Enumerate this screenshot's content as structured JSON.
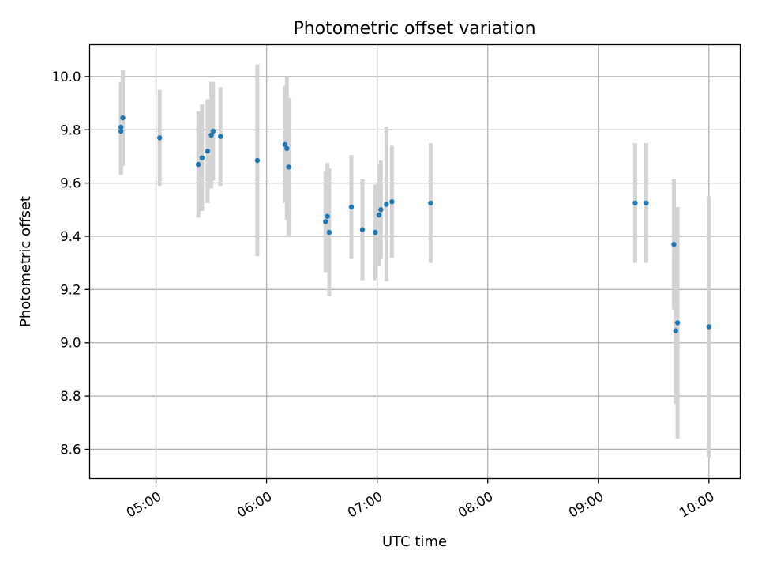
{
  "chart_data": {
    "type": "scatter",
    "title": "Photometric offset variation",
    "xlabel": "UTC time",
    "ylabel": "Photometric offset",
    "xlim": [
      "04:24",
      "10:17"
    ],
    "ylim": [
      8.49,
      10.12
    ],
    "grid": true,
    "x_ticks": [
      "05:00",
      "06:00",
      "07:00",
      "08:00",
      "09:00",
      "10:00"
    ],
    "y_ticks": [
      "8.6",
      "8.8",
      "9.0",
      "9.2",
      "9.4",
      "9.6",
      "9.8",
      "10.0"
    ],
    "point_color": "#1f77b4",
    "errorbar_color": "#d3d3d3",
    "points": [
      {
        "t": "04:41",
        "y": 9.81,
        "err": 0.17
      },
      {
        "t": "04:41",
        "y": 9.795,
        "err": 0.165
      },
      {
        "t": "04:42",
        "y": 9.845,
        "err": 0.18
      },
      {
        "t": "05:02",
        "y": 9.77,
        "err": 0.18
      },
      {
        "t": "05:23",
        "y": 9.67,
        "err": 0.2
      },
      {
        "t": "05:25",
        "y": 9.695,
        "err": 0.2
      },
      {
        "t": "05:28",
        "y": 9.72,
        "err": 0.195
      },
      {
        "t": "05:30",
        "y": 9.78,
        "err": 0.2
      },
      {
        "t": "05:31",
        "y": 9.795,
        "err": 0.185
      },
      {
        "t": "05:35",
        "y": 9.775,
        "err": 0.185
      },
      {
        "t": "05:55",
        "y": 9.685,
        "err": 0.36
      },
      {
        "t": "06:10",
        "y": 9.745,
        "err": 0.22
      },
      {
        "t": "06:11",
        "y": 9.73,
        "err": 0.27
      },
      {
        "t": "06:12",
        "y": 9.66,
        "err": 0.26
      },
      {
        "t": "06:32",
        "y": 9.455,
        "err": 0.19
      },
      {
        "t": "06:33",
        "y": 9.475,
        "err": 0.2
      },
      {
        "t": "06:34",
        "y": 9.415,
        "err": 0.24
      },
      {
        "t": "06:46",
        "y": 9.51,
        "err": 0.195
      },
      {
        "t": "06:52",
        "y": 9.425,
        "err": 0.19
      },
      {
        "t": "06:59",
        "y": 9.415,
        "err": 0.18
      },
      {
        "t": "07:01",
        "y": 9.48,
        "err": 0.19
      },
      {
        "t": "07:02",
        "y": 9.5,
        "err": 0.185
      },
      {
        "t": "07:05",
        "y": 9.52,
        "err": 0.29
      },
      {
        "t": "07:08",
        "y": 9.53,
        "err": 0.21
      },
      {
        "t": "07:29",
        "y": 9.525,
        "err": 0.225
      },
      {
        "t": "09:20",
        "y": 9.525,
        "err": 0.225
      },
      {
        "t": "09:26",
        "y": 9.525,
        "err": 0.225
      },
      {
        "t": "09:41",
        "y": 9.37,
        "err": 0.245
      },
      {
        "t": "09:42",
        "y": 9.045,
        "err": 0.275
      },
      {
        "t": "09:43",
        "y": 9.075,
        "err": 0.435
      },
      {
        "t": "10:00",
        "y": 9.06,
        "err": 0.49
      }
    ]
  }
}
